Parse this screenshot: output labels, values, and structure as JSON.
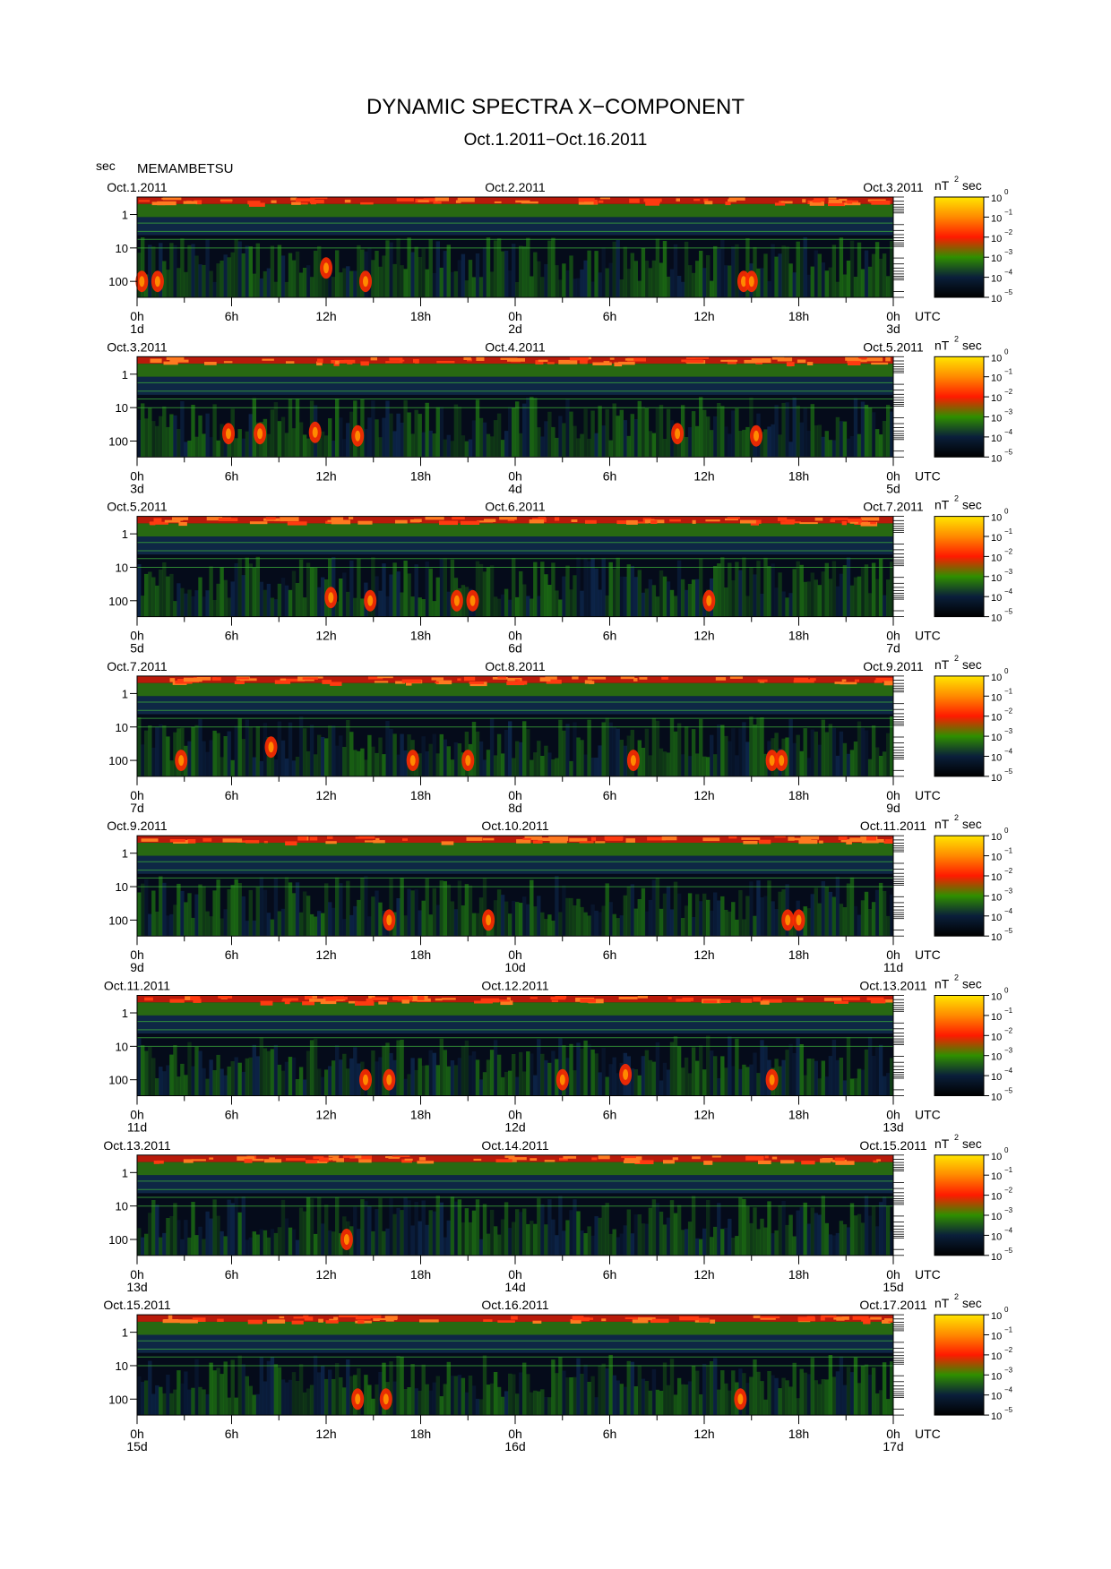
{
  "title": "DYNAMIC SPECTRA X−COMPONENT",
  "subtitle": "Oct.1.2011−Oct.16.2011",
  "y_unit_label": "sec",
  "station": "MEMAMBETSU",
  "colorbar": {
    "unit_base": "nT",
    "unit_exp": "2",
    "unit_suffix": "sec",
    "tick_base": "10",
    "tick_exps": [
      "0",
      "−1",
      "−2",
      "−3",
      "−4",
      "−5"
    ],
    "colors": [
      "#ffe600",
      "#ff8a00",
      "#ff1a00",
      "#2f8f00",
      "#0a1f3a",
      "#000000"
    ]
  },
  "chart_data": {
    "type": "heatmap",
    "y_scale": "log",
    "y_range_sec": [
      0.3,
      300
    ],
    "y_ticks": [
      "1",
      "10",
      "100"
    ],
    "x_ticks": [
      "0h",
      "6h",
      "12h",
      "18h",
      "0h",
      "6h",
      "12h",
      "18h",
      "0h"
    ],
    "x_tz": "UTC",
    "panels": [
      {
        "start": "Oct.1.2011",
        "mid": "Oct.2.2011",
        "end": "Oct.3.2011",
        "d0": "1d",
        "d1": "2d",
        "d2": "3d",
        "hotspots": [
          {
            "t": 0.3,
            "p": 100
          },
          {
            "t": 1.3,
            "p": 100
          },
          {
            "t": 12.0,
            "p": 40
          },
          {
            "t": 14.5,
            "p": 100
          },
          {
            "t": 38.5,
            "p": 100
          },
          {
            "t": 39.0,
            "p": 100
          }
        ]
      },
      {
        "start": "Oct.3.2011",
        "mid": "Oct.4.2011",
        "end": "Oct.5.2011",
        "d0": "3d",
        "d1": "4d",
        "d2": "5d",
        "hotspots": [
          {
            "t": 5.8,
            "p": 60
          },
          {
            "t": 7.8,
            "p": 60
          },
          {
            "t": 11.3,
            "p": 55
          },
          {
            "t": 14.0,
            "p": 70
          },
          {
            "t": 34.3,
            "p": 60
          },
          {
            "t": 39.3,
            "p": 70
          }
        ]
      },
      {
        "start": "Oct.5.2011",
        "mid": "Oct.6.2011",
        "end": "Oct.7.2011",
        "d0": "5d",
        "d1": "6d",
        "d2": "7d",
        "hotspots": [
          {
            "t": 12.3,
            "p": 80
          },
          {
            "t": 14.8,
            "p": 100
          },
          {
            "t": 20.3,
            "p": 100
          },
          {
            "t": 21.3,
            "p": 100
          },
          {
            "t": 36.3,
            "p": 100
          }
        ]
      },
      {
        "start": "Oct.7.2011",
        "mid": "Oct.8.2011",
        "end": "Oct.9.2011",
        "d0": "7d",
        "d1": "8d",
        "d2": "9d",
        "hotspots": [
          {
            "t": 2.8,
            "p": 100
          },
          {
            "t": 8.5,
            "p": 40
          },
          {
            "t": 17.5,
            "p": 100
          },
          {
            "t": 21.0,
            "p": 100
          },
          {
            "t": 31.5,
            "p": 100
          },
          {
            "t": 40.3,
            "p": 100
          },
          {
            "t": 40.9,
            "p": 100
          }
        ]
      },
      {
        "start": "Oct.9.2011",
        "mid": "Oct.10.2011",
        "end": "Oct.11.2011",
        "d0": "9d",
        "d1": "10d",
        "d2": "11d",
        "hotspots": [
          {
            "t": 16.0,
            "p": 100
          },
          {
            "t": 22.3,
            "p": 100
          },
          {
            "t": 41.3,
            "p": 100
          },
          {
            "t": 42.0,
            "p": 100
          }
        ]
      },
      {
        "start": "Oct.11.2011",
        "mid": "Oct.12.2011",
        "end": "Oct.13.2011",
        "d0": "11d",
        "d1": "12d",
        "d2": "13d",
        "hotspots": [
          {
            "t": 14.5,
            "p": 100
          },
          {
            "t": 16.0,
            "p": 100
          },
          {
            "t": 27.0,
            "p": 100
          },
          {
            "t": 31.0,
            "p": 70
          },
          {
            "t": 40.3,
            "p": 100
          }
        ]
      },
      {
        "start": "Oct.13.2011",
        "mid": "Oct.14.2011",
        "end": "Oct.15.2011",
        "d0": "13d",
        "d1": "14d",
        "d2": "15d",
        "hotspots": [
          {
            "t": 13.3,
            "p": 100
          }
        ]
      },
      {
        "start": "Oct.15.2011",
        "mid": "Oct.16.2011",
        "end": "Oct.17.2011",
        "d0": "15d",
        "d1": "16d",
        "d2": "17d",
        "hotspots": [
          {
            "t": 14.0,
            "p": 100
          },
          {
            "t": 15.8,
            "p": 100
          },
          {
            "t": 38.3,
            "p": 100
          }
        ]
      }
    ]
  }
}
